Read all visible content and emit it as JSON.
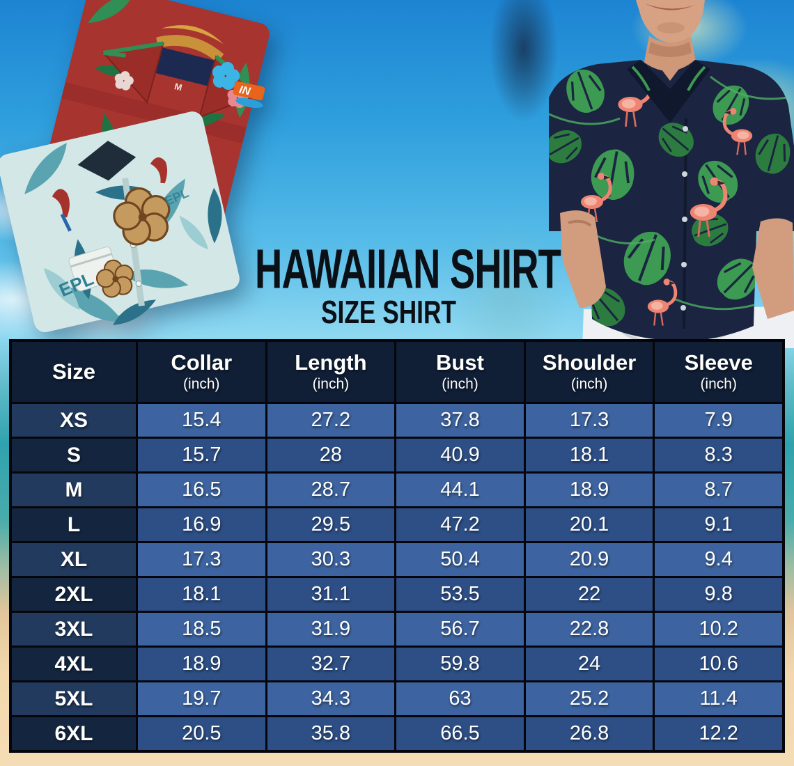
{
  "title": "HAWAIIAN SHIRT",
  "subtitle": "SIZE SHIRT",
  "size_chart": {
    "columns": [
      {
        "label": "Size",
        "sub": ""
      },
      {
        "label": "Collar",
        "sub": "(inch)"
      },
      {
        "label": "Length",
        "sub": "(inch)"
      },
      {
        "label": "Bust",
        "sub": "(inch)"
      },
      {
        "label": "Shoulder",
        "sub": "(inch)"
      },
      {
        "label": "Sleeve",
        "sub": "(inch)"
      }
    ],
    "rows": [
      {
        "size": "XS",
        "collar": "15.4",
        "length": "27.2",
        "bust": "37.8",
        "shoulder": "17.3",
        "sleeve": "7.9"
      },
      {
        "size": "S",
        "collar": "15.7",
        "length": "28",
        "bust": "40.9",
        "shoulder": "18.1",
        "sleeve": "8.3"
      },
      {
        "size": "M",
        "collar": "16.5",
        "length": "28.7",
        "bust": "44.1",
        "shoulder": "18.9",
        "sleeve": "8.7"
      },
      {
        "size": "L",
        "collar": "16.9",
        "length": "29.5",
        "bust": "47.2",
        "shoulder": "20.1",
        "sleeve": "9.1"
      },
      {
        "size": "XL",
        "collar": "17.3",
        "length": "30.3",
        "bust": "50.4",
        "shoulder": "20.9",
        "sleeve": "9.4"
      },
      {
        "size": "2XL",
        "collar": "18.1",
        "length": "31.1",
        "bust": "53.5",
        "shoulder": "22",
        "sleeve": "9.8"
      },
      {
        "size": "3XL",
        "collar": "18.5",
        "length": "31.9",
        "bust": "56.7",
        "shoulder": "22.8",
        "sleeve": "10.2"
      },
      {
        "size": "4XL",
        "collar": "18.9",
        "length": "32.7",
        "bust": "59.8",
        "shoulder": "24",
        "sleeve": "10.6"
      },
      {
        "size": "5XL",
        "collar": "19.7",
        "length": "34.3",
        "bust": "63",
        "shoulder": "25.2",
        "sleeve": "11.4"
      },
      {
        "size": "6XL",
        "collar": "20.5",
        "length": "35.8",
        "bust": "66.5",
        "shoulder": "26.8",
        "sleeve": "12.2"
      }
    ]
  },
  "chart_data": {
    "type": "table",
    "title": "Hawaiian Shirt Size Shirt",
    "columns": [
      "Size",
      "Collar (inch)",
      "Length (inch)",
      "Bust (inch)",
      "Shoulder (inch)",
      "Sleeve (inch)"
    ],
    "rows": [
      [
        "XS",
        15.4,
        27.2,
        37.8,
        17.3,
        7.9
      ],
      [
        "S",
        15.7,
        28,
        40.9,
        18.1,
        8.3
      ],
      [
        "M",
        16.5,
        28.7,
        44.1,
        18.9,
        8.7
      ],
      [
        "L",
        16.9,
        29.5,
        47.2,
        20.1,
        9.1
      ],
      [
        "XL",
        17.3,
        30.3,
        50.4,
        20.9,
        9.4
      ],
      [
        "2XL",
        18.1,
        31.1,
        53.5,
        22,
        9.8
      ],
      [
        "3XL",
        18.5,
        31.9,
        56.7,
        22.8,
        10.2
      ],
      [
        "4XL",
        18.9,
        32.7,
        59.8,
        24,
        10.6
      ],
      [
        "5XL",
        19.7,
        34.3,
        63,
        25.2,
        11.4
      ],
      [
        "6XL",
        20.5,
        35.8,
        66.5,
        26.8,
        12.2
      ]
    ]
  },
  "images": {
    "left_photo": {
      "description": "folded red and teal hawaiian shirts",
      "shirt_label_text": "M",
      "pattern_text": "EPL",
      "sleeve_logo_text": "IN"
    },
    "right_photo": {
      "description": "man wearing navy flamingo hawaiian shirt"
    }
  },
  "colors": {
    "header_bg": "#101f36",
    "size_cell_odd": "#223a5e",
    "size_cell_even": "#14263f",
    "data_cell_odd": "#3d64a0",
    "data_cell_even": "#2d4f86",
    "table_border": "#04060b",
    "title_text": "#0b1016",
    "table_text": "#ffffff",
    "sky": "#2f9fdd",
    "sand": "#f2d8ac"
  }
}
